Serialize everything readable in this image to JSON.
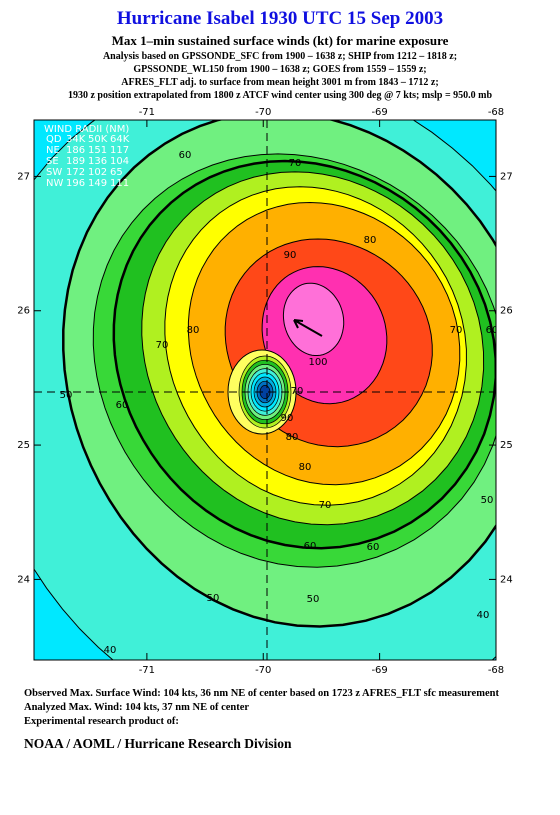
{
  "header": {
    "title": "Hurricane Isabel 1930 UTC 15 Sep 2003",
    "subtitle": "Max 1–min sustained surface winds (kt) for marine exposure",
    "analysis": [
      "Analysis based on  GPSSONDE_SFC from 1900 – 1638 z;  SHIP from 1212 – 1818 z;",
      "GPSSONDE_WL150 from 1900 – 1638 z;  GOES from 1559 – 1559 z;",
      "AFRES_FLT adj. to surface from mean height 3001 m from 1843 – 1712 z;",
      "1930 z position extrapolated from 1800 z ATCF wind center using 300 deg @ 7 kts; mslp = 950.0 mb"
    ]
  },
  "map": {
    "xlim": [
      -71.97,
      -68
    ],
    "ylim": [
      23.4,
      27.42
    ],
    "xticks": [
      -71,
      -70,
      -69,
      -68
    ],
    "yticks": [
      27,
      26,
      25,
      24
    ],
    "wind_radii": {
      "title": "WIND RADII (NM)",
      "columns": [
        "QD",
        "34K",
        "50K",
        "64K"
      ],
      "rows": [
        [
          "NE",
          186,
          151,
          117
        ],
        [
          "SE",
          189,
          136,
          104
        ],
        [
          "SW",
          172,
          102,
          65
        ],
        [
          "NW",
          196,
          149,
          111
        ]
      ]
    },
    "contour_labels": [
      60,
      70,
      80,
      90,
      100,
      80,
      70,
      60,
      50,
      50,
      60,
      70,
      80,
      90,
      70,
      60,
      50,
      40,
      40,
      50,
      60,
      70,
      80
    ]
  },
  "footer": {
    "lines": [
      "Observed Max. Surface Wind: 104 kts, 36 nm NE of center based on 1723 z AFRES_FLT sfc measurement",
      "Analyzed Max. Wind: 104 kts, 37 nm NE of center",
      "Experimental research product of:"
    ],
    "org": "NOAA / AOML / Hurricane Research Division"
  }
}
